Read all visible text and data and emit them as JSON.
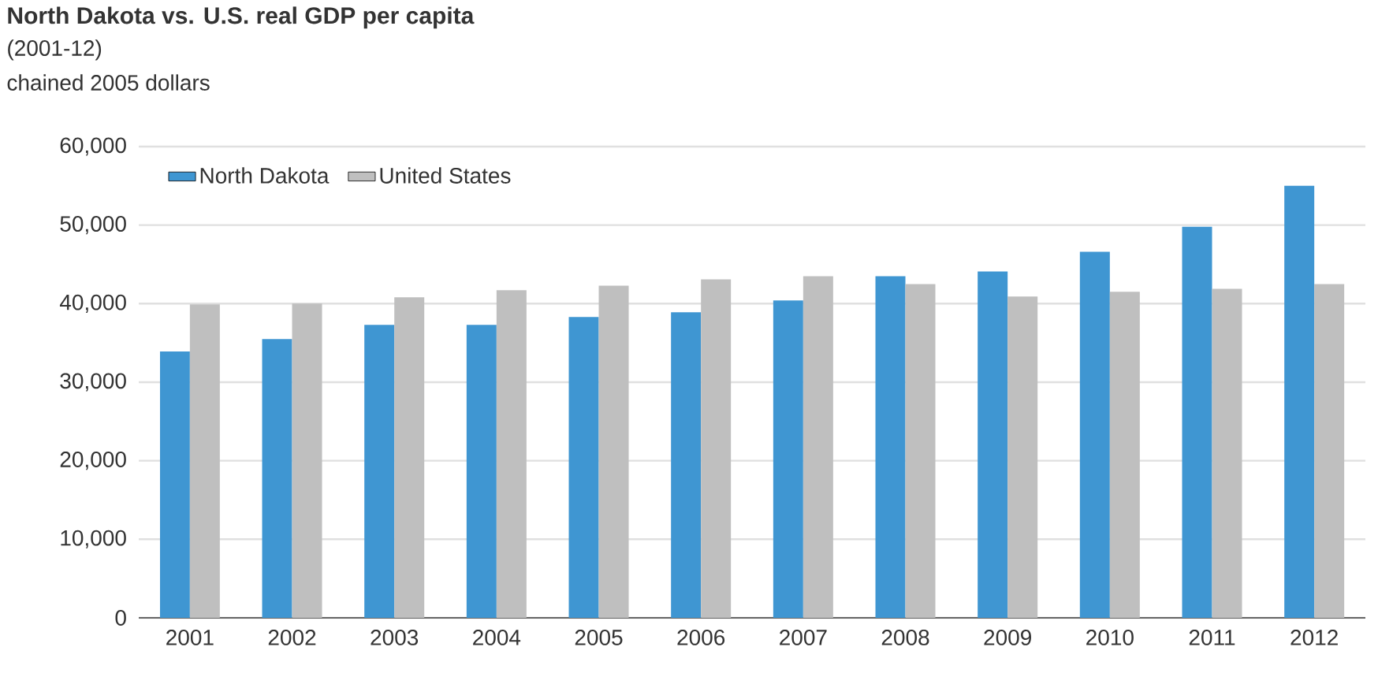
{
  "chart_data": {
    "type": "bar",
    "title": "North Dakota vs. U.S. real GDP per capita",
    "subtitle": "(2001-12)",
    "ylabel": "chained 2005 dollars",
    "categories": [
      "2001",
      "2002",
      "2003",
      "2004",
      "2005",
      "2006",
      "2007",
      "2008",
      "2009",
      "2010",
      "2011",
      "2012"
    ],
    "series": [
      {
        "name": "North Dakota",
        "color": "#3f96d2",
        "values": [
          33900,
          35500,
          37300,
          37300,
          38300,
          38900,
          40400,
          43500,
          44100,
          46600,
          49800,
          55000
        ]
      },
      {
        "name": "United States",
        "color": "#bfbfbf",
        "values": [
          39900,
          40000,
          40800,
          41700,
          42300,
          43100,
          43500,
          42500,
          40900,
          41500,
          41900,
          42500
        ]
      }
    ],
    "ylim": [
      0,
      60000
    ],
    "yticks": [
      {
        "value": 0,
        "label": "0"
      },
      {
        "value": 10000,
        "label": "10,000"
      },
      {
        "value": 20000,
        "label": "20,000"
      },
      {
        "value": 30000,
        "label": "30,000"
      },
      {
        "value": 40000,
        "label": "40,000"
      },
      {
        "value": 50000,
        "label": "50,000"
      },
      {
        "value": 60000,
        "label": "60,000"
      }
    ],
    "grid": "y",
    "legend": "top left"
  }
}
